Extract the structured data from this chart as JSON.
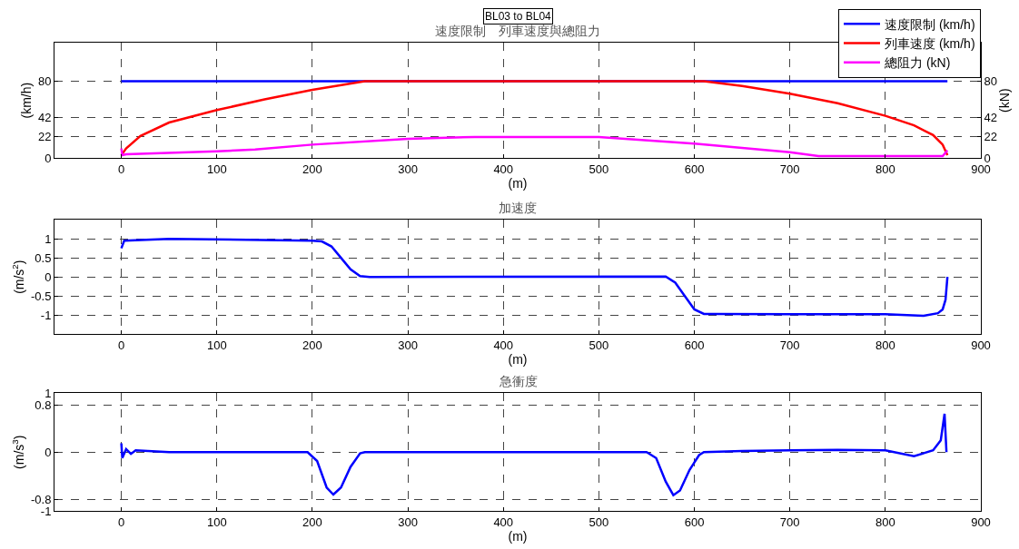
{
  "chart_data": [
    {
      "type": "line",
      "title": "速度限制　列車速度與總阻力",
      "xlabel": "(m)",
      "ylabel": "(km/h)",
      "y2label": "(kN)",
      "annotations": [
        "BL03 to BL04"
      ],
      "xlim": [
        -70,
        900
      ],
      "xticks": [
        0,
        100,
        200,
        300,
        400,
        500,
        600,
        700,
        800,
        900
      ],
      "ylim": [
        0,
        120
      ],
      "yticks": [
        0,
        22,
        42,
        80
      ],
      "y2lim": [
        0,
        120
      ],
      "y2ticks": [
        0,
        22,
        42,
        80
      ],
      "grid": true,
      "legend": "top right",
      "line_style": "solid",
      "series": [
        {
          "name": "速度限制 (km/h)",
          "color": "#0000ff",
          "x": [
            0,
            865
          ],
          "values": [
            80,
            80
          ]
        },
        {
          "name": "列車速度 (km/h)",
          "color": "#ff0000",
          "x": [
            0,
            5,
            20,
            50,
            100,
            150,
            200,
            255,
            610,
            650,
            700,
            750,
            800,
            830,
            850,
            860,
            865
          ],
          "values": [
            3,
            10,
            23,
            37,
            50,
            61,
            71,
            80,
            80,
            75,
            67,
            57,
            44,
            34,
            24,
            14,
            3
          ]
        },
        {
          "name": "總阻力 (kN)",
          "color": "#ff00ff",
          "axis": "y2",
          "x": [
            0,
            1,
            5,
            100,
            140,
            200,
            300,
            370,
            500,
            600,
            700,
            730,
            860,
            865
          ],
          "values": [
            10,
            3,
            4,
            7,
            9,
            14,
            20,
            22,
            22,
            15,
            6,
            2,
            2,
            8
          ]
        }
      ]
    },
    {
      "type": "line",
      "title": "加速度",
      "xlabel": "(m)",
      "ylabel": "(m/s$^{2}$)",
      "xlim": [
        -70,
        900
      ],
      "xticks": [
        0,
        100,
        200,
        300,
        400,
        500,
        600,
        700,
        800,
        900
      ],
      "ylim": [
        -1.5,
        1.5
      ],
      "yticks": [
        -1,
        -0.5,
        0,
        0.5,
        1
      ],
      "grid": true,
      "line_style": "solid",
      "series": [
        {
          "color": "#0000ff",
          "x": [
            0,
            3,
            50,
            200,
            210,
            220,
            230,
            240,
            250,
            260,
            570,
            580,
            590,
            600,
            610,
            620,
            700,
            800,
            840,
            855,
            860,
            863,
            865
          ],
          "values": [
            0.75,
            0.95,
            1.0,
            0.95,
            0.93,
            0.8,
            0.5,
            0.2,
            0.02,
            0,
            0.01,
            -0.15,
            -0.5,
            -0.85,
            -0.97,
            -0.97,
            -0.98,
            -0.98,
            -1.02,
            -0.95,
            -0.85,
            -0.6,
            0
          ]
        }
      ]
    },
    {
      "type": "line",
      "title": "急衝度",
      "xlabel": "(m)",
      "ylabel": "(m/s$^{3}$)",
      "xlim": [
        -70,
        900
      ],
      "xticks": [
        0,
        100,
        200,
        300,
        400,
        500,
        600,
        700,
        800,
        900
      ],
      "ylim": [
        -1,
        1
      ],
      "yticks": [
        -1,
        -0.8,
        0,
        0.8,
        1
      ],
      "grid": true,
      "line_style": "solid",
      "series": [
        {
          "color": "#0000ff",
          "x": [
            0,
            1,
            5,
            10,
            15,
            50,
            195,
            205,
            215,
            222,
            230,
            240,
            250,
            255,
            550,
            560,
            570,
            578,
            585,
            595,
            605,
            610,
            650,
            700,
            750,
            800,
            830,
            850,
            858,
            862,
            864
          ],
          "values": [
            0.15,
            -0.1,
            0.05,
            -0.03,
            0.03,
            0,
            0,
            -0.15,
            -0.6,
            -0.72,
            -0.6,
            -0.25,
            -0.02,
            0,
            0,
            -0.1,
            -0.5,
            -0.73,
            -0.65,
            -0.3,
            -0.05,
            0,
            0.02,
            0.03,
            0.04,
            0.03,
            -0.07,
            0.03,
            0.2,
            0.65,
            0
          ]
        }
      ]
    }
  ]
}
